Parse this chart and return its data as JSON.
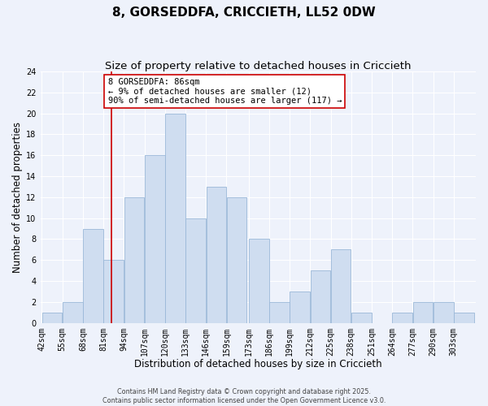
{
  "title": "8, GORSEDDFA, CRICCIETH, LL52 0DW",
  "subtitle": "Size of property relative to detached houses in Criccieth",
  "xlabel": "Distribution of detached houses by size in Criccieth",
  "ylabel": "Number of detached properties",
  "bar_color": "#cfddf0",
  "bar_edge_color": "#9ab8d8",
  "background_color": "#eef2fb",
  "grid_color": "#ffffff",
  "bin_labels": [
    "42sqm",
    "55sqm",
    "68sqm",
    "81sqm",
    "94sqm",
    "107sqm",
    "120sqm",
    "133sqm",
    "146sqm",
    "159sqm",
    "173sqm",
    "186sqm",
    "199sqm",
    "212sqm",
    "225sqm",
    "238sqm",
    "251sqm",
    "264sqm",
    "277sqm",
    "290sqm",
    "303sqm"
  ],
  "bin_edges": [
    42,
    55,
    68,
    81,
    94,
    107,
    120,
    133,
    146,
    159,
    173,
    186,
    199,
    212,
    225,
    238,
    251,
    264,
    277,
    290,
    303
  ],
  "counts": [
    1,
    2,
    9,
    6,
    12,
    16,
    20,
    10,
    13,
    12,
    8,
    2,
    3,
    5,
    7,
    1,
    0,
    1,
    2,
    2,
    1
  ],
  "vline_x": 86,
  "vline_color": "#cc0000",
  "annotation_lines": [
    "8 GORSEDDFA: 86sqm",
    "← 9% of detached houses are smaller (12)",
    "90% of semi-detached houses are larger (117) →"
  ],
  "ylim": [
    0,
    24
  ],
  "yticks": [
    0,
    2,
    4,
    6,
    8,
    10,
    12,
    14,
    16,
    18,
    20,
    22,
    24
  ],
  "footer_lines": [
    "Contains HM Land Registry data © Crown copyright and database right 2025.",
    "Contains public sector information licensed under the Open Government Licence v3.0."
  ],
  "title_fontsize": 11,
  "subtitle_fontsize": 9.5,
  "axis_label_fontsize": 8.5,
  "tick_fontsize": 7,
  "annotation_fontsize": 7.5,
  "footer_fontsize": 5.8
}
